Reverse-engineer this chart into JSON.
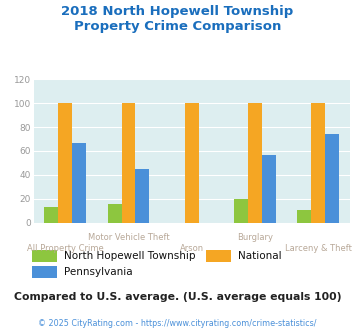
{
  "title": "2018 North Hopewell Township\nProperty Crime Comparison",
  "title_color": "#1a6ebd",
  "categories": [
    "All Property Crime",
    "Motor Vehicle Theft",
    "Arson",
    "Burglary",
    "Larceny & Theft"
  ],
  "series": {
    "North Hopewell Township": [
      13,
      16,
      0,
      20,
      11
    ],
    "National": [
      100,
      100,
      100,
      100,
      100
    ],
    "Pennsylvania": [
      67,
      45,
      0,
      57,
      74
    ]
  },
  "colors": {
    "North Hopewell Township": "#8dc63f",
    "National": "#f5a623",
    "Pennsylvania": "#4a90d9"
  },
  "ylim": [
    0,
    120
  ],
  "yticks": [
    0,
    20,
    40,
    60,
    80,
    100,
    120
  ],
  "plot_bg_color": "#ddeef0",
  "fig_bg_color": "#ffffff",
  "grid_color": "#ffffff",
  "x_upper_label_color": "#b8a898",
  "x_lower_label_color": "#b8a898",
  "footer_text": "Compared to U.S. average. (U.S. average equals 100)",
  "footer_color": "#222222",
  "copyright_text": "© 2025 CityRating.com - https://www.cityrating.com/crime-statistics/",
  "copyright_color": "#4a90d9",
  "bar_width": 0.22,
  "group_positions": [
    0,
    1,
    2,
    3,
    4
  ],
  "upper_x_labels": {
    "1": "Motor Vehicle Theft",
    "3": "Burglary"
  },
  "lower_x_labels": {
    "0": "All Property Crime",
    "2": "Arson",
    "4": "Larceny & Theft"
  }
}
